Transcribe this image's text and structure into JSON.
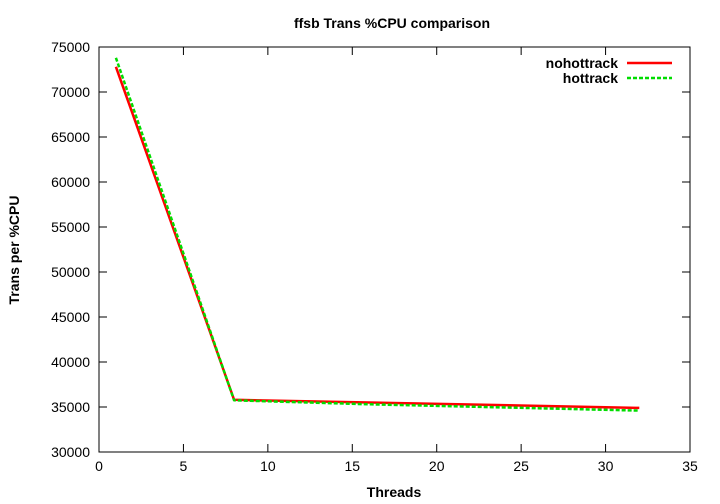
{
  "chart_data": {
    "type": "line",
    "title": "ffsb Trans %CPU comparison",
    "xlabel": "Threads",
    "ylabel": "Trans per %CPU",
    "xlim": [
      0,
      35
    ],
    "ylim": [
      30000,
      75000
    ],
    "xticks": [
      0,
      5,
      10,
      15,
      20,
      25,
      30,
      35
    ],
    "yticks": [
      30000,
      35000,
      40000,
      45000,
      50000,
      55000,
      60000,
      65000,
      70000,
      75000
    ],
    "grid": false,
    "legend_position": "top-right",
    "series": [
      {
        "name": "nohottrack",
        "color": "#ff0000",
        "dash": "solid",
        "x": [
          1,
          8,
          16,
          32
        ],
        "y": [
          72800,
          35800,
          35500,
          34900
        ]
      },
      {
        "name": "hottrack",
        "color": "#00dd00",
        "dash": "dashed",
        "x": [
          1,
          8,
          16,
          32
        ],
        "y": [
          73800,
          35750,
          35300,
          34600
        ]
      }
    ]
  }
}
